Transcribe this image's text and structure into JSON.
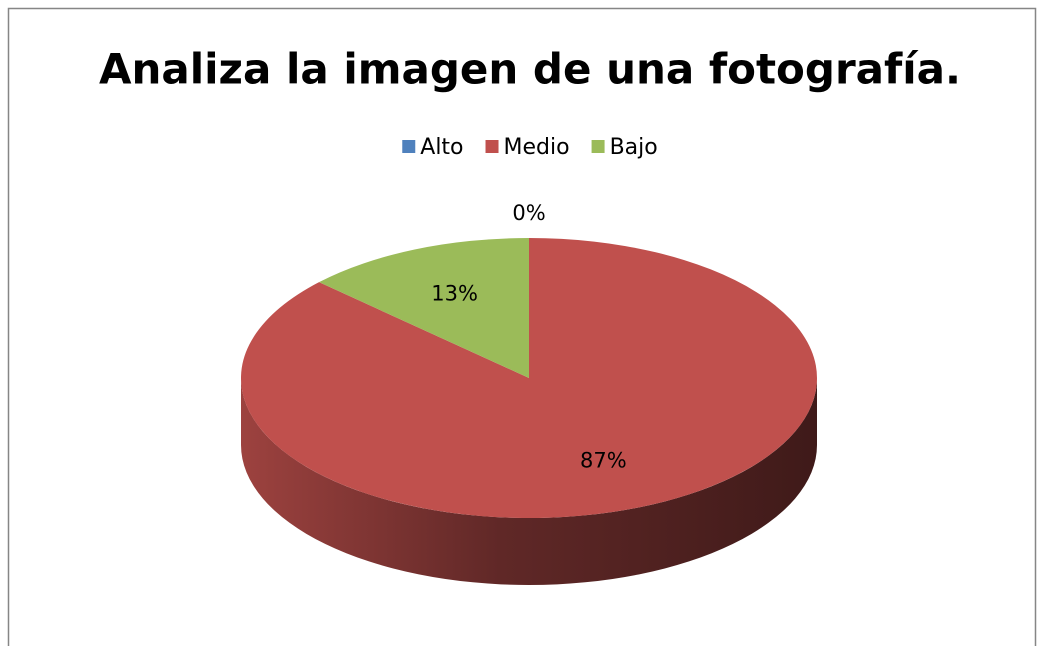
{
  "chart_data": {
    "type": "pie",
    "title": "Analiza la imagen de una fotografía.",
    "categories": [
      "Alto",
      "Medio",
      "Bajo"
    ],
    "values": [
      0,
      87,
      13
    ],
    "value_labels": [
      "0%",
      "87%",
      "13%"
    ],
    "colors": [
      "#4f81bd",
      "#c0504d",
      "#9bbb59"
    ],
    "legend": "top"
  }
}
